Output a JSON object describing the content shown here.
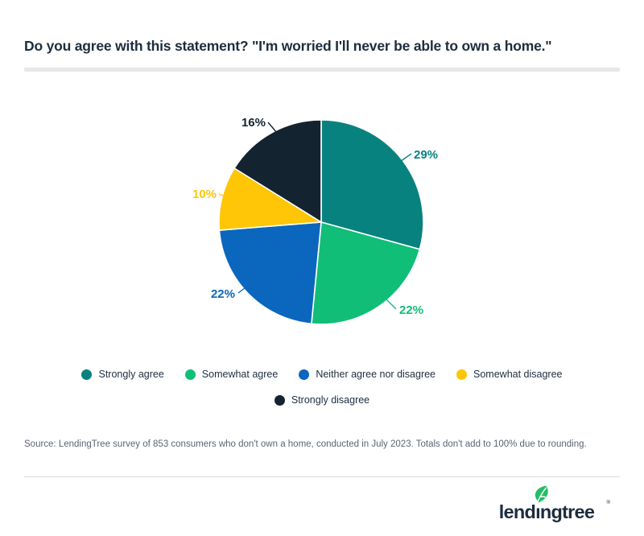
{
  "header": {
    "title": "Do you agree with this statement? \"I'm worried I'll never be able to own a home.\""
  },
  "chart_data": {
    "type": "pie",
    "title": "Do you agree with this statement? \"I'm worried I'll never be able to own a home.\"",
    "legend_position": "bottom",
    "start_angle": "top, clockwise",
    "slices": [
      {
        "label": "Strongly agree",
        "value": 29,
        "display": "29%",
        "color": "#08827F"
      },
      {
        "label": "Somewhat agree",
        "value": 22,
        "display": "22%",
        "color": "#10BE78"
      },
      {
        "label": "Neither agree nor disagree",
        "value": 22,
        "display": "22%",
        "color": "#0B66BD"
      },
      {
        "label": "Somewhat disagree",
        "value": 10,
        "display": "10%",
        "color": "#FFC507"
      },
      {
        "label": "Strongly disagree",
        "value": 16,
        "display": "16%",
        "color": "#142330"
      }
    ]
  },
  "source": {
    "text": "Source: LendingTree survey of 853 consumers who don't own a home, conducted in July 2023. Totals don't add to 100% due to rounding."
  },
  "footer": {
    "logo_text": "lendingtree",
    "logo_registered": "®",
    "leaf_color": "#21BE66",
    "wordmark_color": "#1d2d3e"
  }
}
